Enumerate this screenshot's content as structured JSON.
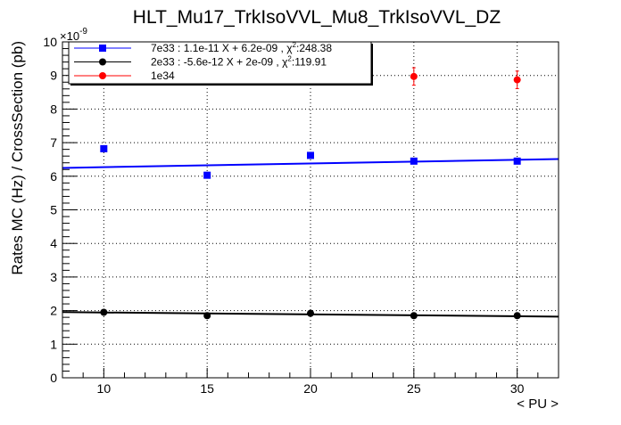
{
  "chart_data": {
    "type": "scatter",
    "title": "HLT_Mu17_TrkIsoVVL_Mu8_TrkIsoVVL_DZ",
    "xlabel": "< PU >",
    "ylabel": "Rates MC (Hz) / CrossSection (pb)",
    "y_exponent_label": "×10",
    "y_exponent_power": "-9",
    "xlim": [
      8,
      32
    ],
    "ylim": [
      0,
      10
    ],
    "x_ticks": [
      10,
      15,
      20,
      25,
      30
    ],
    "x_tick_labels": [
      "10",
      "15",
      "20",
      "25",
      "30"
    ],
    "y_ticks": [
      0,
      1,
      2,
      3,
      4,
      5,
      6,
      7,
      8,
      9,
      10
    ],
    "y_tick_labels": [
      "0",
      "1",
      "2",
      "3",
      "4",
      "5",
      "6",
      "7",
      "8",
      "9",
      "10"
    ],
    "grid": true,
    "legend_position": "top-left",
    "series": [
      {
        "name": "7e33",
        "legend_text": "7e33 : 1.1e-11 X + 6.2e-09 , χ",
        "legend_chi_value": ":248.38",
        "color": "#0000ff",
        "marker": "square",
        "x": [
          10,
          15,
          20,
          25,
          30
        ],
        "y": [
          6.82,
          6.03,
          6.62,
          6.45,
          6.45
        ],
        "yerr": [
          0.07,
          0.07,
          0.07,
          0.07,
          0.07
        ],
        "fit": {
          "slope": 0.011,
          "intercept": 6.16
        }
      },
      {
        "name": "2e33",
        "legend_text": "2e33 : -5.6e-12 X + 2e-09 , χ",
        "legend_chi_value": ":119.91",
        "color": "#000000",
        "marker": "circle",
        "x": [
          10,
          15,
          20,
          25,
          30
        ],
        "y": [
          1.95,
          1.85,
          1.92,
          1.85,
          1.85
        ],
        "yerr": [
          0.03,
          0.03,
          0.03,
          0.03,
          0.03
        ],
        "fit": {
          "slope": -0.0056,
          "intercept": 2.0
        }
      },
      {
        "name": "1e34",
        "legend_text": "1e34",
        "legend_chi_value": "",
        "color": "#ff0000",
        "marker": "circle",
        "x": [
          25,
          30
        ],
        "y": [
          8.97,
          8.87
        ],
        "yerr": [
          0.26,
          0.26
        ],
        "fit": null
      }
    ]
  }
}
